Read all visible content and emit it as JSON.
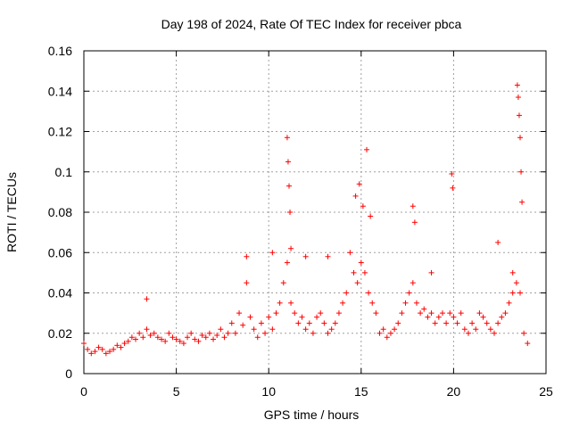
{
  "chart_data": {
    "type": "scatter",
    "title": "Day 198 of 2024, Rate Of TEC Index for receiver pbca",
    "xlabel": "GPS time / hours",
    "ylabel": "ROTI / TECUs",
    "xlim": [
      0,
      25
    ],
    "ylim": [
      0,
      0.16
    ],
    "x_ticks": [
      "0",
      "5",
      "10",
      "15",
      "20",
      "25"
    ],
    "y_ticks": [
      "0",
      "0.02",
      "0.04",
      "0.06",
      "0.08",
      "0.1",
      "0.12",
      "0.14",
      "0.16"
    ],
    "grid": true,
    "marker": "+",
    "color": "#ff0000",
    "series": [
      {
        "x": [
          0.0,
          0.2,
          0.4,
          0.6,
          0.8,
          1.0,
          1.2,
          1.4,
          1.6,
          1.8,
          2.0,
          2.2,
          2.4,
          2.6,
          2.8,
          3.0,
          3.2,
          3.4,
          3.6,
          3.8,
          4.0,
          4.2,
          4.4,
          4.6,
          4.8,
          5.0,
          5.2,
          5.4,
          5.6,
          5.8,
          6.0,
          6.2,
          6.4,
          6.6,
          6.8,
          7.0,
          7.2,
          7.4,
          7.6,
          7.8,
          8.0,
          8.2,
          8.4,
          8.6,
          8.8,
          9.0,
          9.2,
          9.4,
          9.6,
          9.8,
          10.0,
          10.2,
          10.4,
          10.6,
          10.8,
          11.0,
          11.2,
          11.4,
          11.6,
          11.8,
          12.0,
          12.2,
          12.4,
          12.6,
          12.8,
          13.0,
          13.2,
          13.4,
          13.6,
          13.8,
          14.0,
          14.2,
          14.4,
          14.6,
          14.8,
          15.0,
          15.2,
          15.4,
          15.6,
          15.8,
          16.0,
          16.2,
          16.4,
          16.6,
          16.8,
          17.0,
          17.2,
          17.4,
          17.6,
          17.8,
          18.0,
          18.2,
          18.4,
          18.6,
          18.8,
          19.0,
          19.2,
          19.4,
          19.6,
          19.8,
          20.0,
          20.2,
          20.4,
          20.6,
          20.8,
          21.0,
          21.2,
          21.4,
          21.6,
          21.8,
          22.0,
          22.2,
          22.4,
          22.6,
          22.8,
          23.0,
          23.2,
          23.4,
          23.6,
          23.8,
          24.0,
          11.0,
          11.05,
          11.1,
          11.15,
          11.2,
          14.7,
          14.9,
          15.1,
          15.3,
          15.5,
          17.8,
          17.9,
          19.9,
          19.95,
          23.45,
          23.5,
          23.55,
          23.6,
          23.65,
          23.7,
          22.4,
          23.2,
          18.8,
          10.2,
          12.0,
          13.2,
          8.8,
          3.4
        ],
        "y": [
          0.015,
          0.012,
          0.01,
          0.011,
          0.013,
          0.012,
          0.01,
          0.011,
          0.012,
          0.014,
          0.013,
          0.015,
          0.016,
          0.018,
          0.017,
          0.02,
          0.018,
          0.022,
          0.019,
          0.02,
          0.018,
          0.017,
          0.016,
          0.02,
          0.018,
          0.017,
          0.016,
          0.015,
          0.018,
          0.02,
          0.017,
          0.016,
          0.019,
          0.018,
          0.02,
          0.017,
          0.019,
          0.022,
          0.018,
          0.02,
          0.025,
          0.02,
          0.03,
          0.024,
          0.045,
          0.028,
          0.022,
          0.018,
          0.025,
          0.02,
          0.028,
          0.022,
          0.03,
          0.035,
          0.045,
          0.055,
          0.035,
          0.03,
          0.025,
          0.028,
          0.022,
          0.025,
          0.02,
          0.028,
          0.03,
          0.025,
          0.02,
          0.022,
          0.025,
          0.03,
          0.035,
          0.04,
          0.06,
          0.05,
          0.045,
          0.055,
          0.05,
          0.04,
          0.035,
          0.03,
          0.02,
          0.022,
          0.018,
          0.02,
          0.022,
          0.025,
          0.03,
          0.035,
          0.04,
          0.045,
          0.035,
          0.03,
          0.032,
          0.028,
          0.03,
          0.025,
          0.028,
          0.03,
          0.025,
          0.03,
          0.028,
          0.025,
          0.03,
          0.022,
          0.02,
          0.025,
          0.022,
          0.03,
          0.028,
          0.025,
          0.022,
          0.02,
          0.025,
          0.028,
          0.03,
          0.035,
          0.04,
          0.045,
          0.04,
          0.02,
          0.015,
          0.117,
          0.105,
          0.093,
          0.08,
          0.062,
          0.088,
          0.094,
          0.083,
          0.111,
          0.078,
          0.083,
          0.075,
          0.099,
          0.092,
          0.143,
          0.137,
          0.128,
          0.117,
          0.1,
          0.085,
          0.065,
          0.05,
          0.05,
          0.06,
          0.058,
          0.058,
          0.058,
          0.037
        ]
      }
    ]
  }
}
